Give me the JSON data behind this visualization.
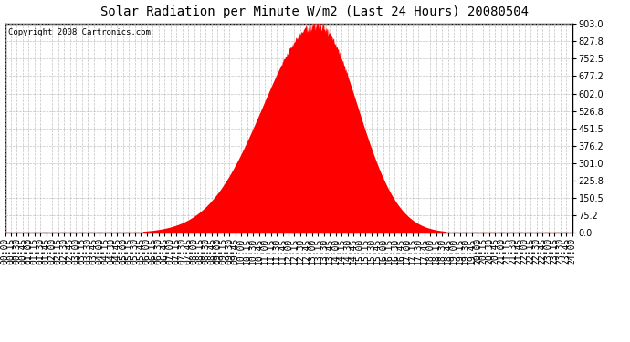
{
  "title": "Solar Radiation per Minute W/m2 (Last 24 Hours) 20080504",
  "copyright": "Copyright 2008 Cartronics.com",
  "yticks": [
    0.0,
    75.2,
    150.5,
    225.8,
    301.0,
    376.2,
    451.5,
    526.8,
    602.0,
    677.2,
    752.5,
    827.8,
    903.0
  ],
  "ymax": 903.0,
  "ymin": 0.0,
  "fill_color": "#FF0000",
  "dashed_line_color": "#FF0000",
  "grid_color": "#BBBBBB",
  "background_color": "#FFFFFF",
  "title_fontsize": 10,
  "copyright_fontsize": 6.5,
  "tick_fontsize": 7,
  "sunrise_min": 350,
  "sunset_min": 1120,
  "peak_min": 793,
  "peak_value": 903.0
}
